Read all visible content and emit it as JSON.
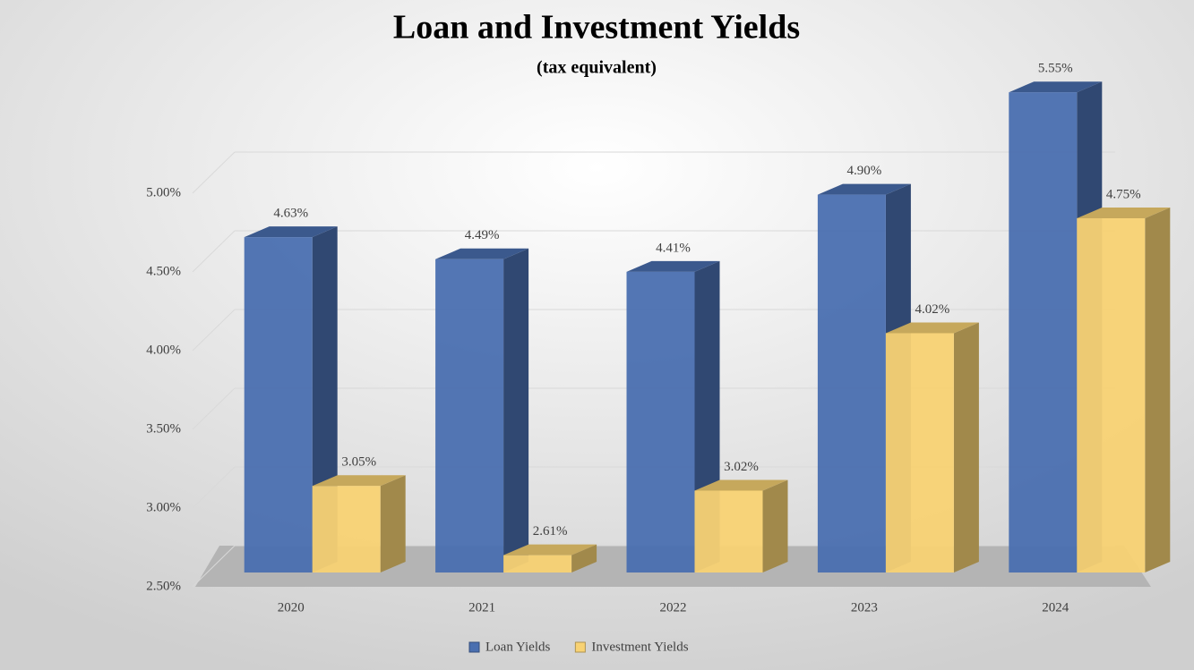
{
  "chart_data": {
    "type": "bar",
    "title": "Loan and Investment Yields",
    "subtitle": "(tax equivalent)",
    "categories": [
      "2020",
      "2021",
      "2022",
      "2023",
      "2024"
    ],
    "series": [
      {
        "name": "Loan Yields",
        "color": "#4a6fb0",
        "values": [
          4.63,
          4.49,
          4.41,
          4.9,
          5.55
        ],
        "value_labels": [
          "4.63%",
          "4.49%",
          "4.41%",
          "4.90%",
          "5.55%"
        ]
      },
      {
        "name": "Investment Yields",
        "color": "#f8d273",
        "values": [
          3.05,
          2.61,
          3.02,
          4.02,
          4.75
        ],
        "value_labels": [
          "3.05%",
          "2.61%",
          "3.02%",
          "4.02%",
          "4.75%"
        ]
      }
    ],
    "ylim": [
      2.5,
      5.0
    ],
    "yticks": [
      {
        "value": 2.5,
        "label": "2.50%"
      },
      {
        "value": 3.0,
        "label": "3.00%"
      },
      {
        "value": 3.5,
        "label": "3.50%"
      },
      {
        "value": 4.0,
        "label": "4.00%"
      },
      {
        "value": 4.5,
        "label": "4.50%"
      },
      {
        "value": 5.0,
        "label": "5.00%"
      }
    ],
    "grid": true,
    "legend": "bottom"
  }
}
